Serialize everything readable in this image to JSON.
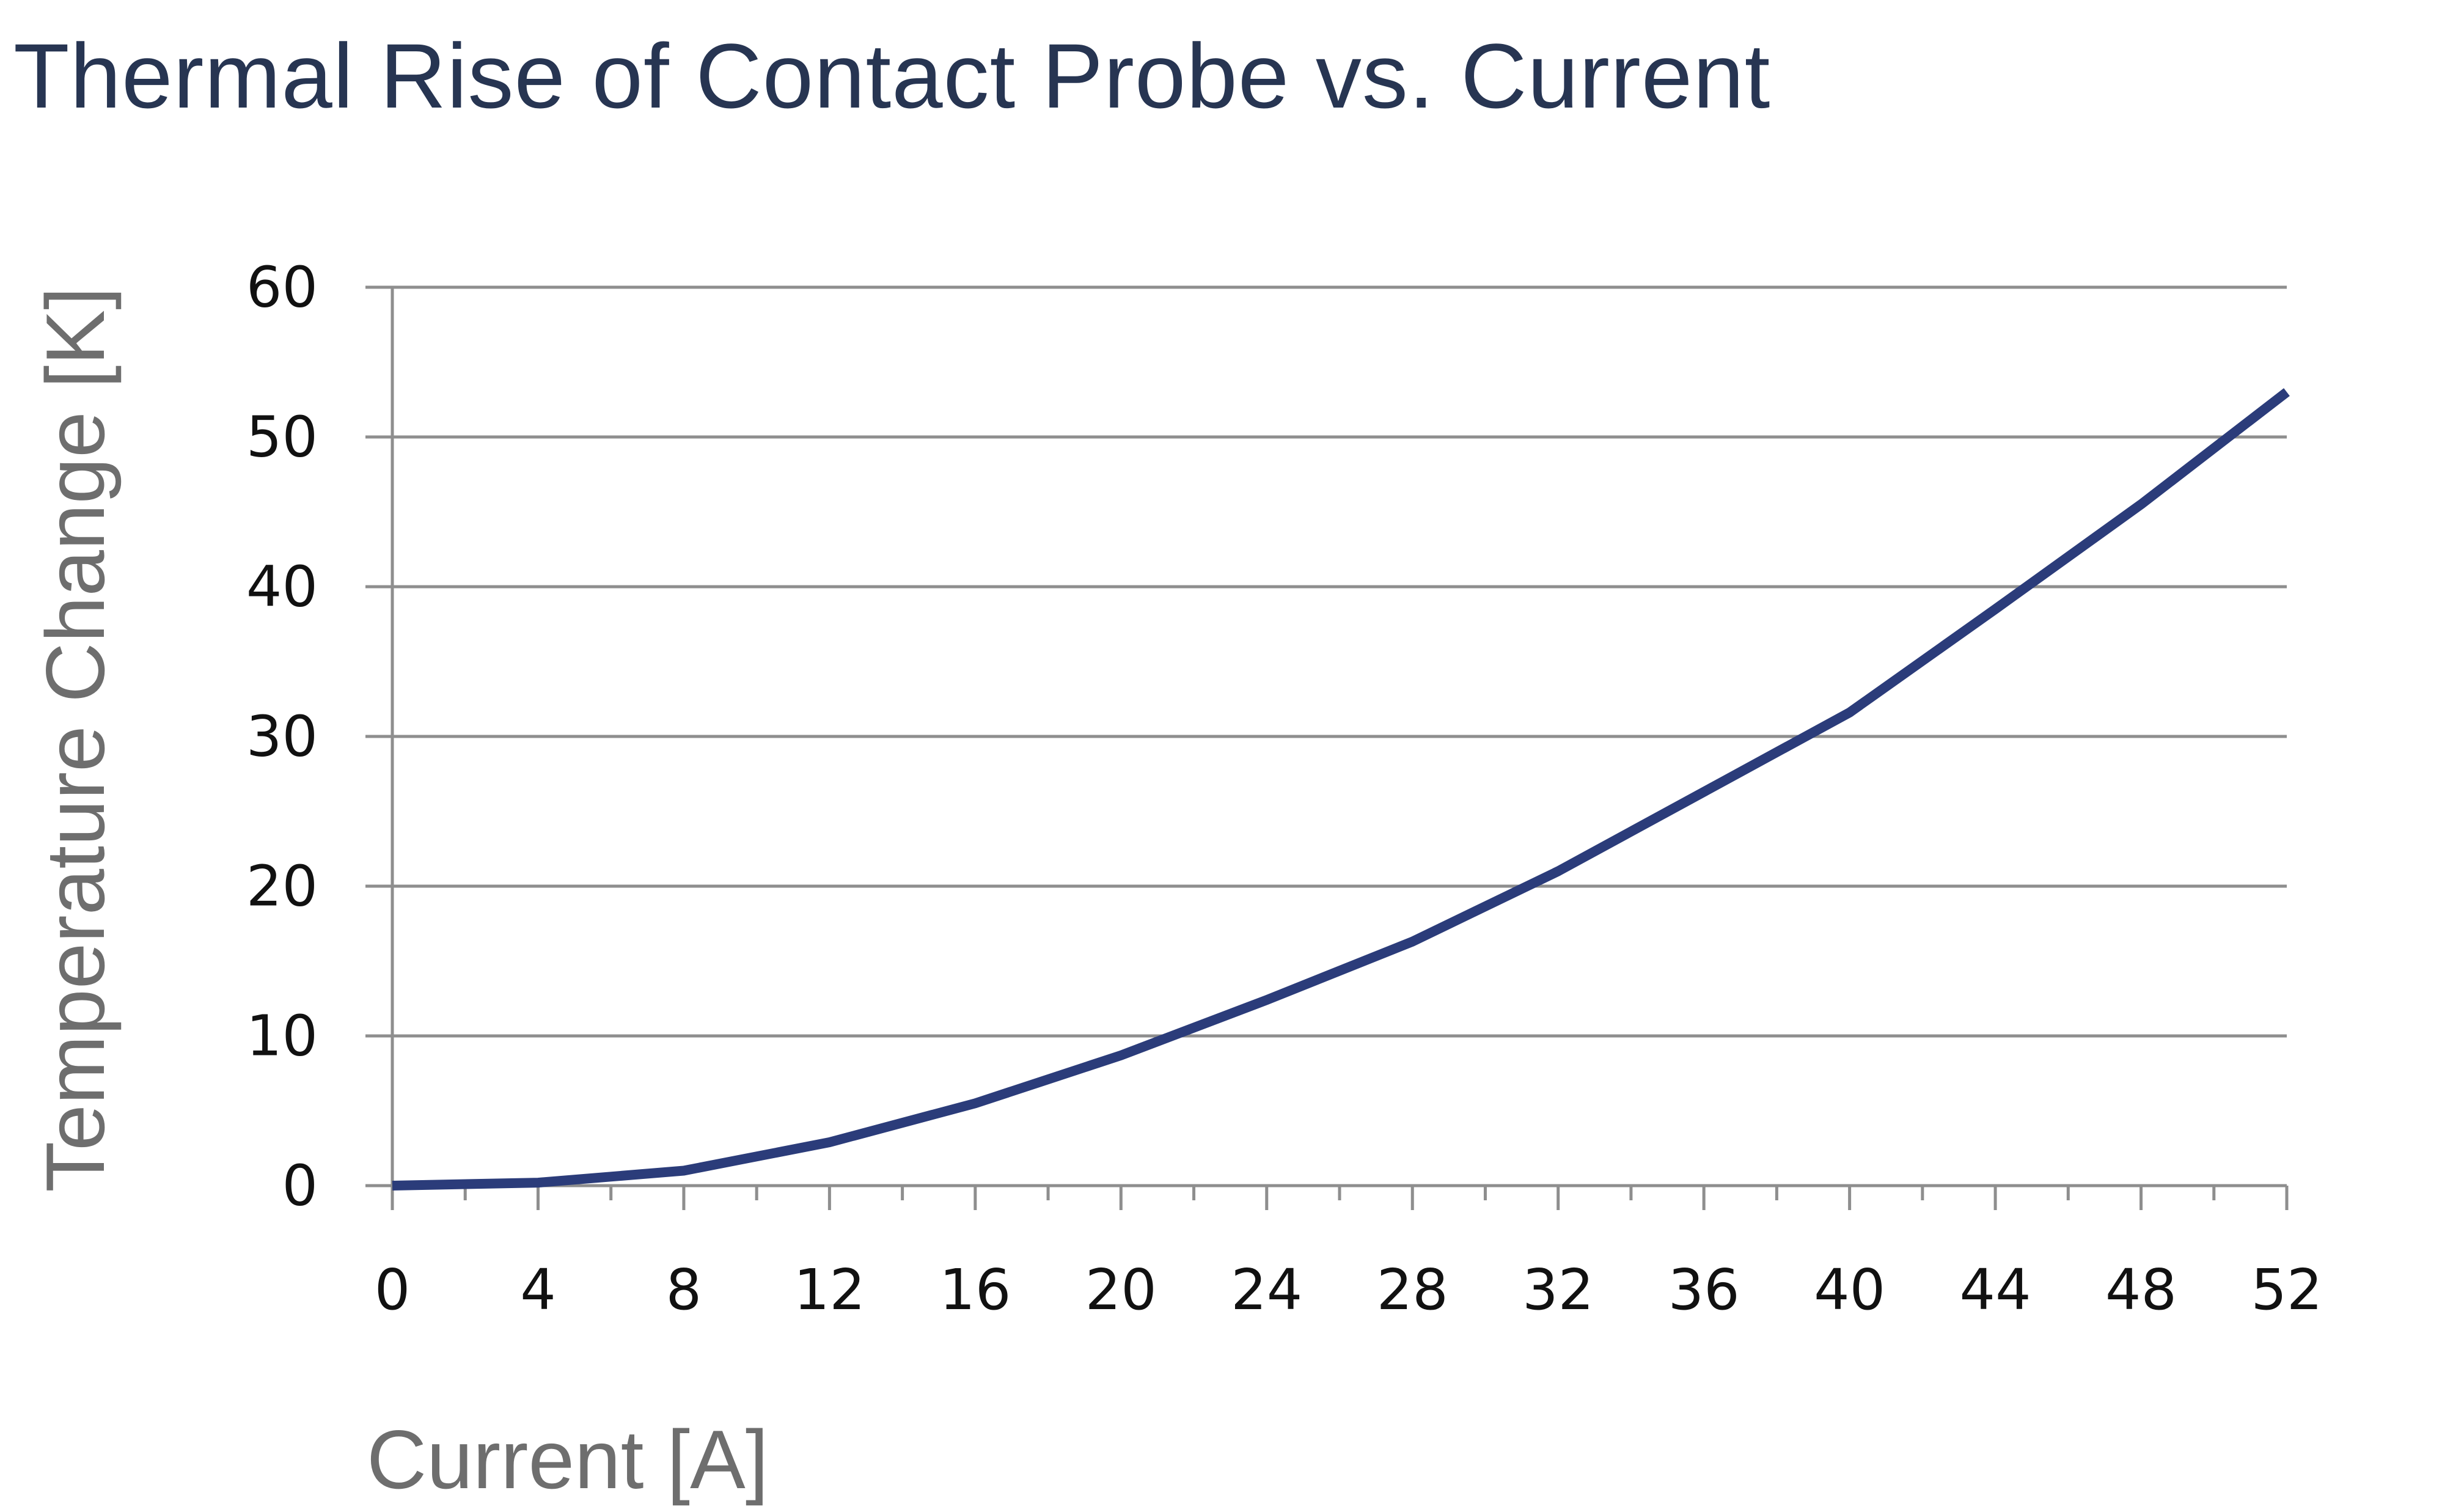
{
  "colors": {
    "title": "#273552",
    "line": "#2b3c7a",
    "grid": "#8e8e8e",
    "axis": "#8e8e8e",
    "tick_text": "#111111",
    "axis_title": "#6e6e6e",
    "background": "#ffffff"
  },
  "chart_data": {
    "type": "line",
    "title": "Thermal Rise of Contact Probe vs. Current",
    "xlabel": "Current [A]",
    "ylabel": "Temperature Change [K]",
    "xlim": [
      0,
      52
    ],
    "ylim": [
      0,
      60
    ],
    "x_ticks": [
      0,
      4,
      8,
      12,
      16,
      20,
      24,
      28,
      32,
      36,
      40,
      44,
      48,
      52
    ],
    "x_tick_labels": [
      "0",
      "4",
      "8",
      "12",
      "16",
      "20",
      "24",
      "28",
      "32",
      "36",
      "40",
      "44",
      "48",
      "52"
    ],
    "x_minor_step": 2,
    "y_ticks": [
      0,
      10,
      20,
      30,
      40,
      50,
      60
    ],
    "y_tick_labels": [
      "0",
      "10",
      "20",
      "30",
      "40",
      "50",
      "60"
    ],
    "grid": "horizontal",
    "legend": "none",
    "series": [
      {
        "x": [
          0,
          4,
          8,
          12,
          16,
          20,
          24,
          28,
          32,
          36,
          40,
          44,
          48,
          52
        ],
        "y": [
          0,
          0.2,
          1.0,
          2.9,
          5.5,
          8.7,
          12.4,
          16.3,
          21.0,
          26.3,
          31.6,
          38.5,
          45.5,
          53.0
        ]
      }
    ]
  }
}
